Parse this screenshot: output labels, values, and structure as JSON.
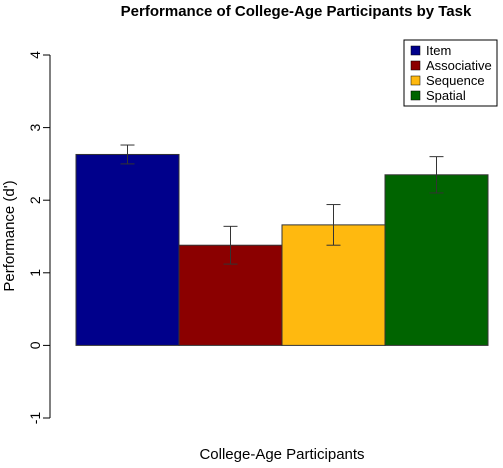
{
  "chart_data": {
    "type": "bar",
    "title": "Performance of College-Age Participants by Task",
    "xlabel": "College-Age Participants",
    "ylabel": "Performance (d')",
    "ylim": [
      -1,
      4
    ],
    "y_ticks": [
      "-1",
      "0",
      "1",
      "2",
      "3",
      "4"
    ],
    "series": [
      {
        "name": "Item",
        "value": 2.63,
        "error": 0.13,
        "color": "#00008B"
      },
      {
        "name": "Associative",
        "value": 1.38,
        "error": 0.26,
        "color": "#8B0000"
      },
      {
        "name": "Sequence",
        "value": 1.66,
        "error": 0.28,
        "color": "#FFB90F"
      },
      {
        "name": "Spatial",
        "value": 2.35,
        "error": 0.25,
        "color": "#006400"
      }
    ],
    "grid": false,
    "legend_position": "top-right"
  }
}
